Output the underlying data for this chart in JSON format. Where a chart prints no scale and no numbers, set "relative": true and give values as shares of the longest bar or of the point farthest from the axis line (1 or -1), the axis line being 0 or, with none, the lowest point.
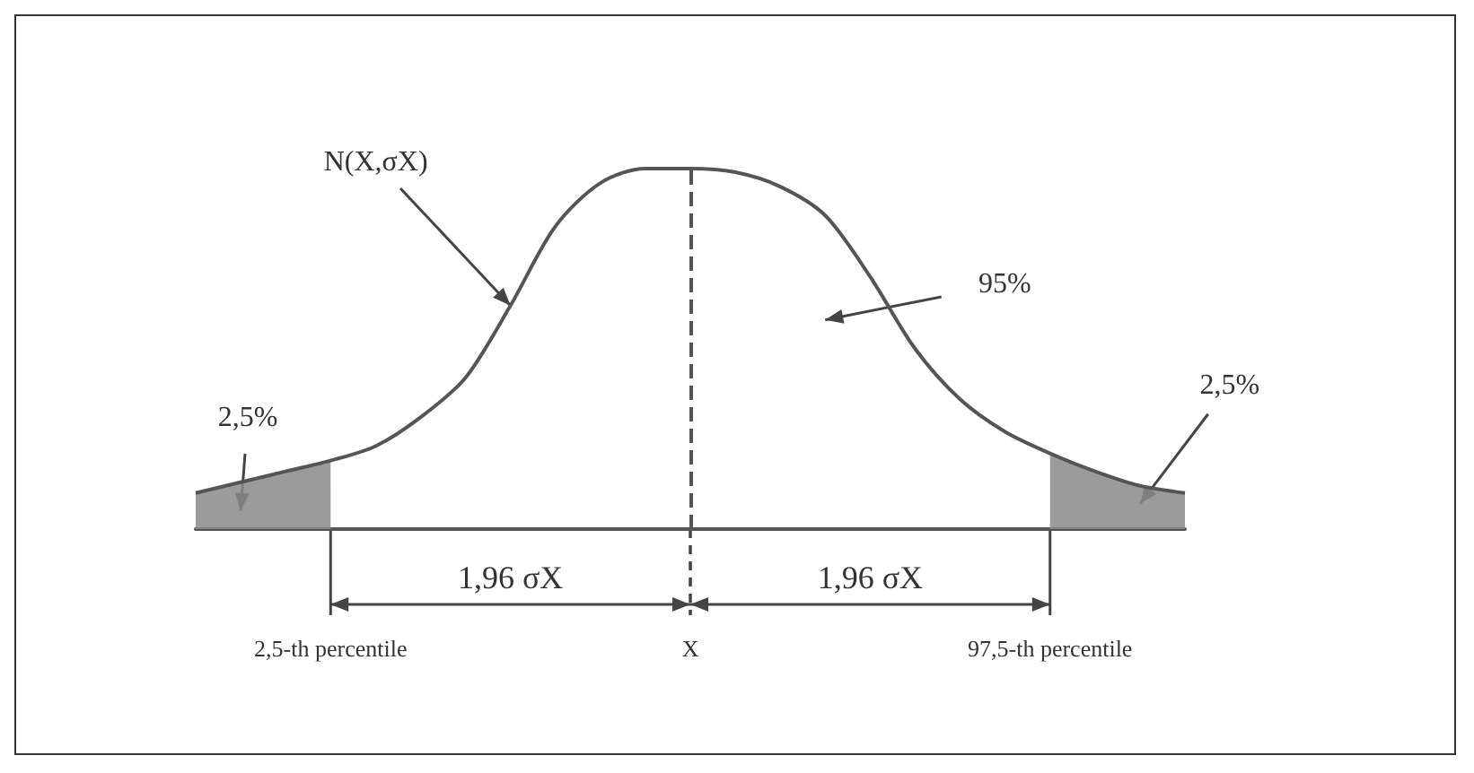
{
  "chart_data": {
    "type": "line",
    "relative": true,
    "categories": [
      null,
      null,
      null,
      "2,5-th percentile",
      null,
      null,
      null,
      null,
      null,
      null,
      null,
      "X",
      null,
      null,
      null,
      null,
      null,
      null,
      null,
      "97,5-th percentile",
      null,
      null,
      null
    ],
    "grid": false,
    "marker": "none",
    "line_style": "solid",
    "series": [
      {
        "color": "#555555",
        "values": [
          0.1,
          0.13,
          0.16,
          0.19,
          0.23,
          0.31,
          0.42,
          0.62,
          0.84,
          0.96,
          1.0,
          1.0,
          0.99,
          0.95,
          0.87,
          0.7,
          0.5,
          0.36,
          0.27,
          0.21,
          0.16,
          0.12,
          0.1
        ]
      },
      {
        "type": "area",
        "color": "#8a8a8a",
        "values": [
          0.1,
          0.13,
          0.16,
          0.19,
          null,
          null,
          null,
          null,
          null,
          null,
          null,
          null,
          null,
          null,
          null,
          null,
          null,
          null,
          null,
          null,
          null,
          null,
          null
        ]
      },
      {
        "type": "area",
        "color": "#8a8a8a",
        "values": [
          null,
          null,
          null,
          null,
          null,
          null,
          null,
          null,
          null,
          null,
          null,
          null,
          null,
          null,
          null,
          null,
          null,
          null,
          null,
          0.21,
          0.16,
          0.12,
          0.1
        ]
      }
    ],
    "ref_lines": [
      {
        "axis": "x",
        "value": "X",
        "line_style": "dashed",
        "color": "#555555"
      }
    ],
    "annotations": [
      "N(X,σX)",
      "95%",
      "2,5%",
      "2,5%",
      "1,96 σX",
      "1,96 σX"
    ]
  }
}
